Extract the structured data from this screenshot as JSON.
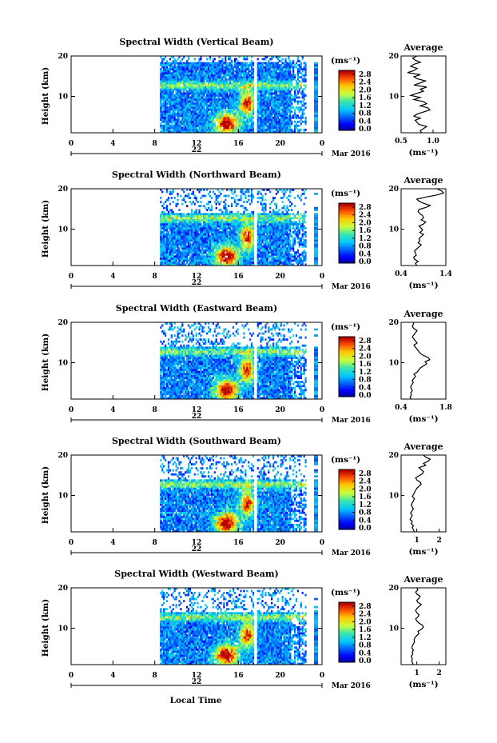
{
  "figure": {
    "xlabel": "Local Time",
    "date_label": "Mar 2016",
    "day_label": "22",
    "x_ticks": [
      "0",
      "4",
      "8",
      "12",
      "16",
      "20",
      "0"
    ],
    "y_ticks": [
      "20",
      "10"
    ],
    "ylabel": "Height (km)",
    "colorbar_unit": "(ms⁻¹)",
    "colorbar_ticks": [
      "2.8",
      "2.4",
      "2.0",
      "1.6",
      "1.2",
      "0.8",
      "0.4",
      "0.0"
    ],
    "avg_title": "Average",
    "avg_unit": "(ms⁻¹)",
    "avg_y_ticks": [
      "20",
      "10"
    ]
  },
  "chart_data": [
    {
      "type": "heatmap",
      "title": "Spectral Width (Vertical Beam)",
      "x_range_hours": [
        0,
        24
      ],
      "y_range_km": [
        1,
        20
      ],
      "data_start_hour": 8.5,
      "data_end_hour": 22.5,
      "value_range": [
        0.0,
        3.0
      ],
      "average_profile": {
        "xlim": [
          0.5,
          1.2
        ],
        "x_ticks": [
          "0.5",
          "1.0"
        ],
        "tick_values": [
          0.5,
          1.0
        ],
        "values": [
          0.82,
          0.8,
          0.85,
          0.9,
          0.78,
          0.75,
          0.72,
          0.8,
          0.7,
          0.75,
          0.85,
          0.95,
          0.92,
          0.8,
          0.9,
          0.85,
          0.7,
          0.8,
          0.65,
          0.75,
          0.85,
          0.8,
          0.9,
          0.7,
          0.8,
          0.88,
          0.75,
          0.7,
          0.8,
          0.6,
          0.7,
          0.75,
          0.65,
          0.7,
          0.8,
          0.72,
          0.68,
          0.75
        ]
      }
    },
    {
      "type": "heatmap",
      "title": "Spectral Width (Northward Beam)",
      "x_range_hours": [
        0,
        24
      ],
      "y_range_km": [
        1,
        20
      ],
      "data_start_hour": 8.5,
      "data_end_hour": 22.5,
      "value_range": [
        0.0,
        3.0
      ],
      "average_profile": {
        "xlim": [
          0.4,
          1.4
        ],
        "x_ticks": [
          "0.4",
          "1.4"
        ],
        "tick_values": [
          0.4,
          1.4
        ],
        "values": [
          0.75,
          0.72,
          0.78,
          0.7,
          0.68,
          0.74,
          0.72,
          0.7,
          0.75,
          0.8,
          0.85,
          0.78,
          0.82,
          0.8,
          0.85,
          0.9,
          0.82,
          0.88,
          0.85,
          0.8,
          0.9,
          0.95,
          0.85,
          0.9,
          0.88,
          0.82,
          0.78,
          0.8,
          0.95,
          1.05,
          0.9,
          0.8,
          0.75,
          0.95,
          1.2,
          1.35,
          1.3,
          1.2
        ]
      }
    },
    {
      "type": "heatmap",
      "title": "Spectral Width (Eastward Beam)",
      "x_range_hours": [
        0,
        24
      ],
      "y_range_km": [
        1,
        20
      ],
      "data_start_hour": 8.5,
      "data_end_hour": 22.5,
      "value_range": [
        0.0,
        3.0
      ],
      "average_profile": {
        "xlim": [
          0.4,
          1.8
        ],
        "x_ticks": [
          "0.4",
          "1.8"
        ],
        "tick_values": [
          0.4,
          1.8
        ],
        "values": [
          0.7,
          0.68,
          0.72,
          0.7,
          0.75,
          0.72,
          0.7,
          0.74,
          0.78,
          0.75,
          0.8,
          0.85,
          0.8,
          0.9,
          0.95,
          1.0,
          1.1,
          1.2,
          1.15,
          1.3,
          1.25,
          1.1,
          1.0,
          0.95,
          0.9,
          0.85,
          0.8,
          0.9,
          0.85,
          0.8,
          0.75,
          0.8,
          0.85,
          0.9,
          0.8,
          0.75,
          0.78,
          0.8
        ]
      }
    },
    {
      "type": "heatmap",
      "title": "Spectral Width (Southward Beam)",
      "x_range_hours": [
        0,
        24
      ],
      "y_range_km": [
        1,
        20
      ],
      "data_start_hour": 8.5,
      "data_end_hour": 22.5,
      "value_range": [
        0.0,
        3.0
      ],
      "average_profile": {
        "xlim": [
          0.3,
          2.3
        ],
        "x_ticks": [
          "1",
          "2"
        ],
        "tick_values": [
          1,
          2
        ],
        "values": [
          0.9,
          0.85,
          0.8,
          0.85,
          0.75,
          0.8,
          0.7,
          0.75,
          0.8,
          0.72,
          0.78,
          0.85,
          0.8,
          0.75,
          0.8,
          0.85,
          0.9,
          0.8,
          0.85,
          0.9,
          0.95,
          1.0,
          1.1,
          1.2,
          1.15,
          1.0,
          0.95,
          1.1,
          1.25,
          1.3,
          1.2,
          1.1,
          1.4,
          1.3,
          1.5,
          1.6,
          1.4,
          1.3
        ]
      }
    },
    {
      "type": "heatmap",
      "title": "Spectral Width (Westward Beam)",
      "x_range_hours": [
        0,
        24
      ],
      "y_range_km": [
        1,
        20
      ],
      "data_start_hour": 8.5,
      "data_end_hour": 22.5,
      "value_range": [
        0.0,
        3.0
      ],
      "average_profile": {
        "xlim": [
          0.3,
          2.3
        ],
        "x_ticks": [
          "1",
          "2"
        ],
        "tick_values": [
          1,
          2
        ],
        "values": [
          0.85,
          0.8,
          0.78,
          0.8,
          0.75,
          0.82,
          0.8,
          0.85,
          0.78,
          0.8,
          0.85,
          0.9,
          0.88,
          0.92,
          1.0,
          1.1,
          1.05,
          1.2,
          1.3,
          1.25,
          1.1,
          1.0,
          0.95,
          1.05,
          1.1,
          1.0,
          0.95,
          1.0,
          1.1,
          1.2,
          1.05,
          1.0,
          1.1,
          1.15,
          1.0,
          0.95,
          1.05,
          1.0
        ]
      }
    }
  ]
}
